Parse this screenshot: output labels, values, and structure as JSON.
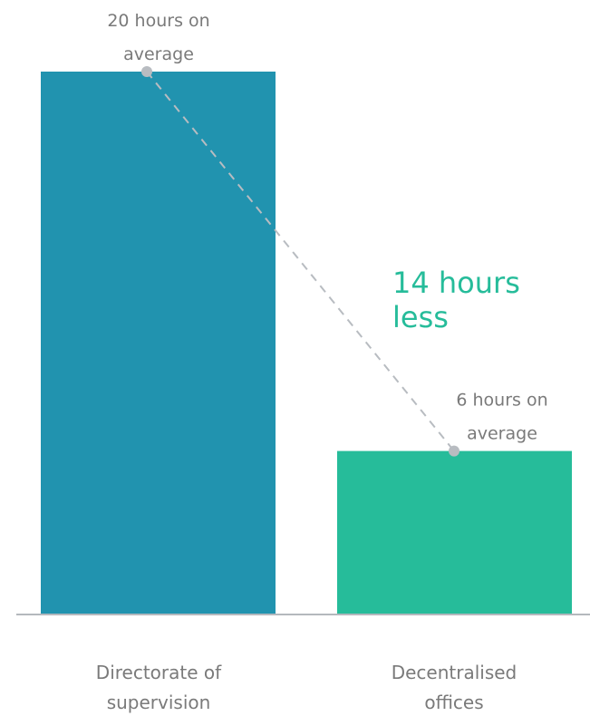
{
  "chart_data": {
    "type": "bar",
    "categories": [
      "Directorate of supervision",
      "Decentralised offices"
    ],
    "category_lines": [
      [
        "Directorate of",
        "supervision"
      ],
      [
        "Decentralised",
        "offices"
      ]
    ],
    "values": [
      20,
      6
    ],
    "unit": "hours",
    "value_labels": [
      [
        "20 hours on",
        "average"
      ],
      [
        "6 hours on",
        "average"
      ]
    ],
    "difference_label": [
      "14 hours",
      "less"
    ],
    "colors": [
      "#2193af",
      "#26bc9a"
    ],
    "highlight_color": "#26bc9a",
    "ylim": [
      0,
      20
    ],
    "grid": false,
    "legend": "none"
  }
}
